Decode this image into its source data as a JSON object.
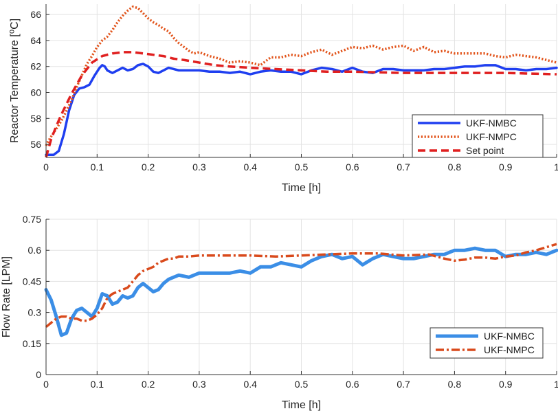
{
  "colors": {
    "blue_dark": "#1f3ff0",
    "orange_dotted": "#e2541b",
    "red_setpoint": "#e02020",
    "blue_light": "#3b8ee6",
    "orange_dashdot": "#d94a1c",
    "grid": "#e3e3e3",
    "axis": "#333333"
  },
  "chart_data": [
    {
      "type": "line",
      "xlabel": "Time [h]",
      "ylabel": "Reactor Temperature [⁰C]",
      "xlim": [
        0,
        1
      ],
      "ylim": [
        55,
        66.8
      ],
      "xticks": [
        0,
        0.1,
        0.2,
        0.3,
        0.4,
        0.5,
        0.6,
        0.7,
        0.8,
        0.9,
        1
      ],
      "xtick_labels": [
        "0",
        "0.1",
        "0.2",
        "0.3",
        "0.4",
        "0.5",
        "0.6",
        "0.7",
        "0.8",
        "0.9",
        "1"
      ],
      "yticks": [
        56,
        58,
        60,
        62,
        64,
        66
      ],
      "ytick_labels": [
        "56",
        "58",
        "60",
        "62",
        "64",
        "66"
      ],
      "grid": true,
      "legend_position": "lower-right",
      "series": [
        {
          "name": "UKF-NMBC",
          "style": "solid",
          "x": [
            0,
            0.005,
            0.015,
            0.025,
            0.035,
            0.045,
            0.055,
            0.065,
            0.075,
            0.085,
            0.095,
            0.105,
            0.11,
            0.115,
            0.12,
            0.13,
            0.14,
            0.15,
            0.16,
            0.17,
            0.18,
            0.19,
            0.2,
            0.21,
            0.22,
            0.23,
            0.24,
            0.25,
            0.26,
            0.28,
            0.3,
            0.32,
            0.34,
            0.36,
            0.38,
            0.4,
            0.42,
            0.44,
            0.46,
            0.48,
            0.5,
            0.52,
            0.54,
            0.56,
            0.58,
            0.6,
            0.62,
            0.64,
            0.66,
            0.68,
            0.7,
            0.72,
            0.74,
            0.76,
            0.78,
            0.8,
            0.82,
            0.84,
            0.86,
            0.88,
            0.9,
            0.92,
            0.94,
            0.96,
            0.98,
            1.0
          ],
          "y": [
            55.2,
            55.2,
            55.2,
            55.5,
            56.8,
            58.6,
            59.8,
            60.3,
            60.4,
            60.6,
            61.3,
            61.9,
            62.1,
            62.0,
            61.7,
            61.5,
            61.7,
            61.9,
            61.7,
            61.8,
            62.1,
            62.2,
            62.0,
            61.6,
            61.5,
            61.7,
            61.9,
            61.8,
            61.7,
            61.7,
            61.7,
            61.6,
            61.6,
            61.5,
            61.6,
            61.4,
            61.6,
            61.7,
            61.6,
            61.6,
            61.4,
            61.7,
            61.9,
            61.8,
            61.6,
            61.9,
            61.6,
            61.5,
            61.8,
            61.8,
            61.7,
            61.7,
            61.7,
            61.8,
            61.8,
            61.9,
            62.0,
            62.0,
            62.1,
            62.1,
            61.8,
            61.8,
            61.7,
            61.8,
            61.8,
            61.9
          ]
        },
        {
          "name": "UKF-NMPC",
          "style": "dotted",
          "x": [
            0,
            0.005,
            0.01,
            0.02,
            0.03,
            0.04,
            0.05,
            0.06,
            0.07,
            0.08,
            0.09,
            0.1,
            0.11,
            0.12,
            0.13,
            0.14,
            0.15,
            0.16,
            0.17,
            0.18,
            0.19,
            0.2,
            0.21,
            0.22,
            0.23,
            0.24,
            0.25,
            0.26,
            0.27,
            0.28,
            0.29,
            0.3,
            0.32,
            0.34,
            0.36,
            0.38,
            0.4,
            0.42,
            0.44,
            0.46,
            0.48,
            0.5,
            0.52,
            0.54,
            0.56,
            0.58,
            0.6,
            0.62,
            0.64,
            0.66,
            0.68,
            0.7,
            0.72,
            0.74,
            0.76,
            0.78,
            0.8,
            0.82,
            0.84,
            0.86,
            0.88,
            0.9,
            0.92,
            0.94,
            0.96,
            0.98,
            1.0
          ],
          "y": [
            55.9,
            56.3,
            56.6,
            57.2,
            57.8,
            58.6,
            59.4,
            60.4,
            61.3,
            62.2,
            62.8,
            63.5,
            64.0,
            64.3,
            64.8,
            65.4,
            65.9,
            66.3,
            66.6,
            66.5,
            66.1,
            65.7,
            65.4,
            65.2,
            64.9,
            64.7,
            64.2,
            63.8,
            63.5,
            63.2,
            63.0,
            63.1,
            62.8,
            62.6,
            62.3,
            62.4,
            62.3,
            62.1,
            62.7,
            62.7,
            62.9,
            62.8,
            63.1,
            63.3,
            62.9,
            63.2,
            63.5,
            63.4,
            63.6,
            63.3,
            63.5,
            63.6,
            63.2,
            63.5,
            63.1,
            63.2,
            63.0,
            63.0,
            63.0,
            63.0,
            62.8,
            62.7,
            62.9,
            62.8,
            62.7,
            62.5,
            62.3
          ]
        },
        {
          "name": "Set point",
          "style": "dashed",
          "x": [
            0,
            0.01,
            0.02,
            0.03,
            0.05,
            0.07,
            0.09,
            0.11,
            0.13,
            0.15,
            0.17,
            0.19,
            0.21,
            0.23,
            0.25,
            0.27,
            0.3,
            0.33,
            0.36,
            0.4,
            0.45,
            0.5,
            0.55,
            0.6,
            0.7,
            0.8,
            0.9,
            1.0
          ],
          "y": [
            55.0,
            56.4,
            57.4,
            58.3,
            59.9,
            61.3,
            62.3,
            62.8,
            63.0,
            63.1,
            63.1,
            63.0,
            62.9,
            62.8,
            62.6,
            62.5,
            62.3,
            62.1,
            62.0,
            61.9,
            61.8,
            61.7,
            61.6,
            61.6,
            61.5,
            61.5,
            61.5,
            61.4
          ]
        }
      ]
    },
    {
      "type": "line",
      "xlabel": "Time [h]",
      "ylabel": "Flow Rate [LPM]",
      "xlim": [
        0,
        1
      ],
      "ylim": [
        0,
        0.75
      ],
      "xticks": [
        0,
        0.1,
        0.2,
        0.3,
        0.4,
        0.5,
        0.6,
        0.7,
        0.8,
        0.9,
        1
      ],
      "xtick_labels": [
        "0",
        "0.1",
        "0.2",
        "0.3",
        "0.4",
        "0.5",
        "0.6",
        "0.7",
        "0.8",
        "0.9",
        "1"
      ],
      "yticks": [
        0,
        0.15,
        0.3,
        0.45,
        0.6,
        0.75
      ],
      "ytick_labels": [
        "0",
        "0.15",
        "0.3",
        "0.45",
        "0.6",
        "0.75"
      ],
      "grid": true,
      "legend_position": "lower-right",
      "series": [
        {
          "name": "UKF-NMBC",
          "style": "solid",
          "x": [
            0,
            0.01,
            0.02,
            0.03,
            0.04,
            0.05,
            0.06,
            0.07,
            0.08,
            0.09,
            0.1,
            0.11,
            0.12,
            0.13,
            0.14,
            0.15,
            0.16,
            0.17,
            0.18,
            0.19,
            0.2,
            0.21,
            0.22,
            0.23,
            0.24,
            0.25,
            0.26,
            0.28,
            0.3,
            0.32,
            0.34,
            0.36,
            0.38,
            0.4,
            0.42,
            0.44,
            0.46,
            0.48,
            0.5,
            0.52,
            0.54,
            0.56,
            0.58,
            0.6,
            0.62,
            0.64,
            0.66,
            0.68,
            0.7,
            0.72,
            0.74,
            0.76,
            0.78,
            0.8,
            0.82,
            0.84,
            0.86,
            0.88,
            0.9,
            0.92,
            0.94,
            0.96,
            0.98,
            1.0
          ],
          "y": [
            0.41,
            0.36,
            0.28,
            0.19,
            0.2,
            0.27,
            0.31,
            0.32,
            0.3,
            0.28,
            0.32,
            0.39,
            0.38,
            0.34,
            0.35,
            0.38,
            0.37,
            0.38,
            0.42,
            0.44,
            0.42,
            0.4,
            0.41,
            0.44,
            0.46,
            0.47,
            0.48,
            0.47,
            0.49,
            0.49,
            0.49,
            0.49,
            0.5,
            0.49,
            0.52,
            0.52,
            0.54,
            0.53,
            0.52,
            0.55,
            0.57,
            0.58,
            0.56,
            0.57,
            0.53,
            0.56,
            0.58,
            0.57,
            0.56,
            0.56,
            0.57,
            0.58,
            0.58,
            0.6,
            0.6,
            0.61,
            0.6,
            0.6,
            0.57,
            0.58,
            0.58,
            0.59,
            0.58,
            0.6
          ]
        },
        {
          "name": "UKF-NMPC",
          "style": "dashdot",
          "x": [
            0,
            0.01,
            0.02,
            0.03,
            0.04,
            0.05,
            0.06,
            0.07,
            0.08,
            0.09,
            0.1,
            0.11,
            0.12,
            0.13,
            0.14,
            0.15,
            0.16,
            0.17,
            0.18,
            0.19,
            0.2,
            0.21,
            0.22,
            0.23,
            0.24,
            0.25,
            0.26,
            0.28,
            0.3,
            0.35,
            0.4,
            0.45,
            0.5,
            0.55,
            0.6,
            0.65,
            0.7,
            0.75,
            0.78,
            0.8,
            0.82,
            0.84,
            0.86,
            0.88,
            0.9,
            0.92,
            0.94,
            0.96,
            0.98,
            1.0
          ],
          "y": [
            0.23,
            0.25,
            0.27,
            0.28,
            0.28,
            0.27,
            0.27,
            0.26,
            0.26,
            0.27,
            0.29,
            0.32,
            0.37,
            0.39,
            0.4,
            0.41,
            0.42,
            0.45,
            0.48,
            0.5,
            0.51,
            0.52,
            0.54,
            0.55,
            0.56,
            0.56,
            0.57,
            0.57,
            0.575,
            0.575,
            0.575,
            0.57,
            0.575,
            0.58,
            0.585,
            0.585,
            0.575,
            0.58,
            0.56,
            0.55,
            0.555,
            0.565,
            0.565,
            0.56,
            0.57,
            0.575,
            0.59,
            0.6,
            0.615,
            0.63
          ]
        }
      ]
    }
  ]
}
